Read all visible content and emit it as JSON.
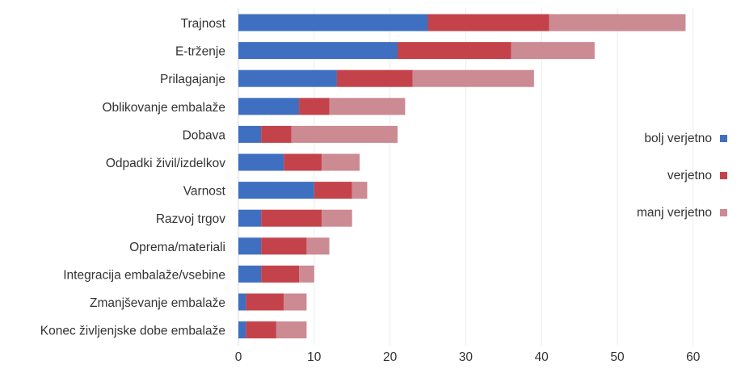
{
  "chart_data": {
    "type": "bar",
    "orientation": "horizontal",
    "stacked": true,
    "categories": [
      "Trajnost",
      "E-trženje",
      "Prilagajanje",
      "Oblikovanje embalaže",
      "Dobava",
      "Odpadki živil/izdelkov",
      "Varnost",
      "Razvoj trgov",
      "Oprema/materiali",
      "Integracija embalaže/vsebine",
      "Zmanjševanje embalaže",
      "Konec življenjske dobe embalaže"
    ],
    "series": [
      {
        "name": "bolj verjetno",
        "color": "#3f6fc1",
        "values": [
          25,
          21,
          13,
          8,
          3,
          6,
          10,
          3,
          3,
          3,
          1,
          1
        ]
      },
      {
        "name": "verjetno",
        "color": "#c4434b",
        "values": [
          16,
          15,
          10,
          4,
          4,
          5,
          5,
          8,
          6,
          5,
          5,
          4
        ]
      },
      {
        "name": "manj verjetno",
        "color": "#cc8a92",
        "values": [
          18,
          11,
          16,
          10,
          14,
          5,
          2,
          4,
          3,
          2,
          3,
          4
        ]
      }
    ],
    "xlim": [
      0,
      60
    ],
    "xticks": [
      0,
      10,
      20,
      30,
      40,
      50,
      60
    ],
    "grid": true,
    "legend": "right"
  }
}
